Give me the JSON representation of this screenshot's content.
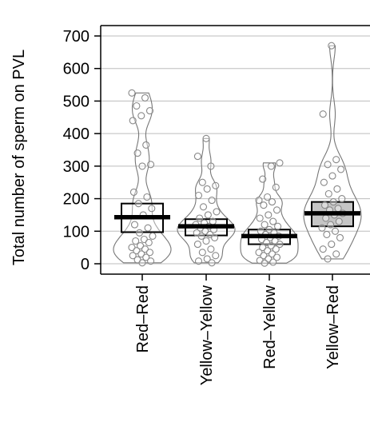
{
  "chart_data": {
    "type": "violin-box-dot",
    "title": "",
    "ylabel": "Total number of sperm on PVL",
    "xlabel": "",
    "ylim": [
      -30,
      725
    ],
    "yticks": [
      0,
      100,
      200,
      300,
      400,
      500,
      600,
      700
    ],
    "ytick_labels": [
      "0",
      "100",
      "200",
      "300",
      "400",
      "500",
      "600",
      "700"
    ],
    "grid": "horizontal",
    "categories": [
      "Red–Red",
      "Yellow–Yellow",
      "Red–Yellow",
      "Yellow–Red"
    ],
    "series": [
      {
        "category": "Red–Red",
        "mean": 143,
        "q1": 97,
        "median": 125,
        "q3": 185,
        "min": 0,
        "max": 525,
        "points": [
          525,
          510,
          485,
          470,
          455,
          440,
          365,
          340,
          305,
          300,
          220,
          205,
          185,
          170,
          150,
          120,
          110,
          95,
          85,
          75,
          70,
          65,
          55,
          50,
          45,
          40,
          35,
          30,
          25,
          20,
          12,
          8,
          3
        ]
      },
      {
        "category": "Yellow–Yellow",
        "mean": 115,
        "q1": 87,
        "median": 117,
        "q3": 137,
        "min": 0,
        "max": 385,
        "points": [
          385,
          330,
          300,
          250,
          240,
          230,
          210,
          195,
          175,
          160,
          150,
          140,
          130,
          125,
          120,
          115,
          110,
          105,
          100,
          95,
          90,
          85,
          80,
          70,
          60,
          45,
          35,
          25,
          15,
          8,
          3
        ]
      },
      {
        "category": "Red–Yellow",
        "mean": 85,
        "q1": 60,
        "median": 83,
        "q3": 105,
        "min": 0,
        "max": 310,
        "points": [
          310,
          300,
          260,
          235,
          205,
          195,
          190,
          180,
          165,
          150,
          140,
          130,
          120,
          115,
          105,
          100,
          95,
          90,
          85,
          80,
          75,
          70,
          65,
          60,
          55,
          50,
          45,
          40,
          35,
          30,
          25,
          20,
          15,
          10,
          5,
          2
        ]
      },
      {
        "category": "Yellow–Red",
        "mean": 155,
        "q1": 115,
        "median": 150,
        "q3": 190,
        "min": 10,
        "max": 670,
        "points": [
          670,
          460,
          320,
          305,
          290,
          270,
          250,
          230,
          215,
          200,
          190,
          180,
          170,
          165,
          155,
          150,
          140,
          130,
          120,
          110,
          100,
          90,
          80,
          60,
          45,
          30,
          15
        ]
      }
    ]
  }
}
